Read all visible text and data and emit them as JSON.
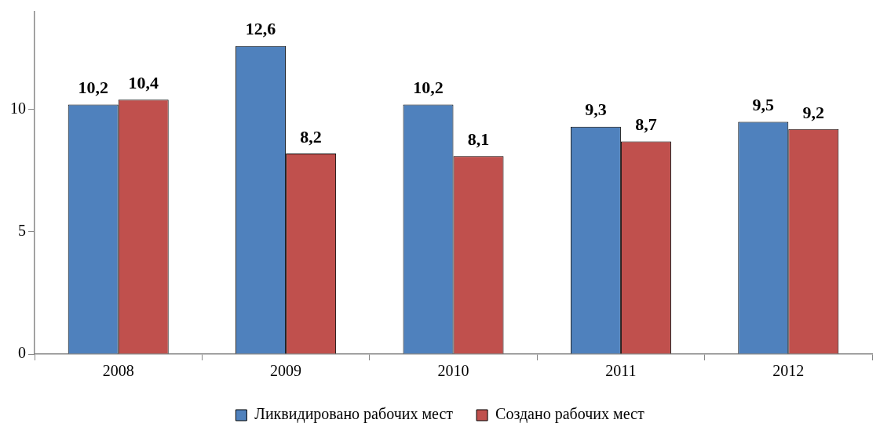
{
  "chart_data": {
    "type": "bar",
    "categories": [
      "2008",
      "2009",
      "2010",
      "2011",
      "2012"
    ],
    "series": [
      {
        "name": "Ликвидировано рабочих мест",
        "color": "#4f81bd",
        "values": [
          10.2,
          12.6,
          10.2,
          9.3,
          9.5
        ],
        "value_labels": [
          "10,2",
          "12,6",
          "10,2",
          "9,3",
          "9,5"
        ]
      },
      {
        "name": "Создано рабочих мест",
        "color": "#c0504d",
        "values": [
          10.4,
          8.2,
          8.1,
          8.7,
          9.2
        ],
        "value_labels": [
          "10,4",
          "8,2",
          "8,1",
          "8,7",
          "9,2"
        ]
      }
    ],
    "ylim": [
      0,
      14
    ],
    "yticks": [
      0,
      5,
      10
    ],
    "legend": "bottom",
    "grid": false
  }
}
